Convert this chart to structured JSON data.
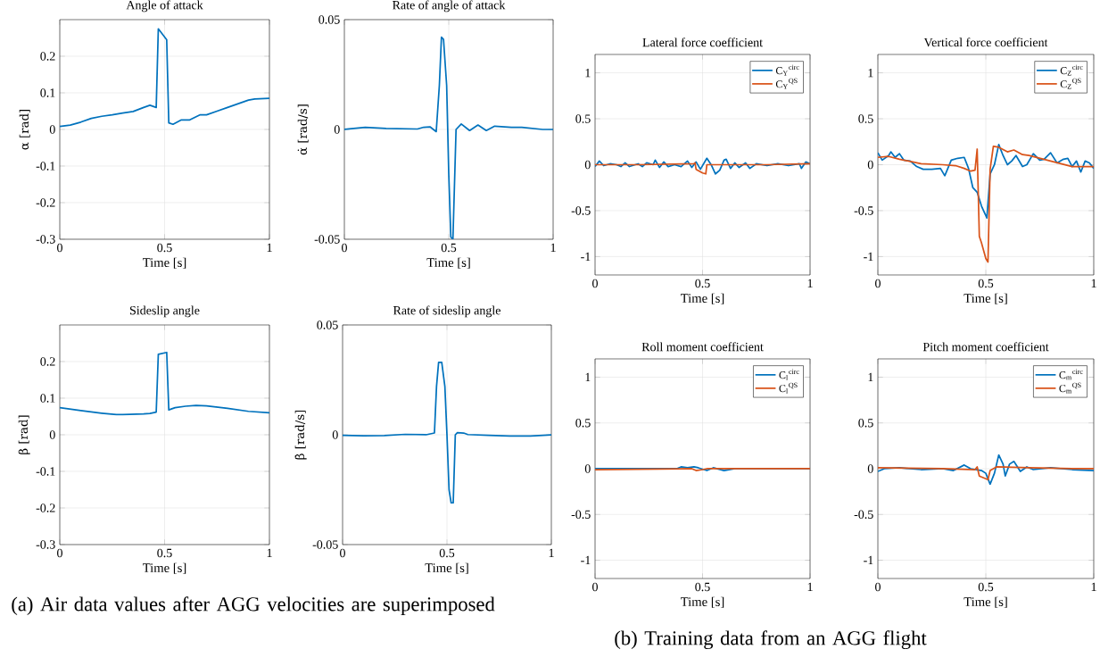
{
  "chart_data": [
    {
      "type": "line",
      "title": "Angle of attack",
      "xlabel": "Time [s]",
      "ylabel": "α [rad]",
      "xlim": [
        0,
        1
      ],
      "ylim": [
        -0.3,
        0.3
      ],
      "xticks": [
        0,
        0.5,
        1
      ],
      "yticks": [
        -0.3,
        -0.2,
        -0.1,
        0,
        0.1,
        0.2
      ],
      "grid": true,
      "series": [
        {
          "color": "#0072bd",
          "x": [
            0,
            0.05,
            0.1,
            0.15,
            0.2,
            0.25,
            0.3,
            0.35,
            0.4,
            0.43,
            0.46,
            0.47,
            0.51,
            0.52,
            0.54,
            0.58,
            0.62,
            0.67,
            0.7,
            0.75,
            0.8,
            0.85,
            0.9,
            0.93,
            1
          ],
          "values": [
            0.008,
            0.012,
            0.02,
            0.03,
            0.036,
            0.04,
            0.045,
            0.049,
            0.06,
            0.066,
            0.06,
            0.275,
            0.245,
            0.018,
            0.014,
            0.026,
            0.026,
            0.04,
            0.04,
            0.05,
            0.06,
            0.07,
            0.08,
            0.083,
            0.085
          ]
        }
      ]
    },
    {
      "type": "line",
      "title": "Rate of angle of attack",
      "xlabel": "Time [s]",
      "ylabel": "α̇ [rad/s]",
      "xlim": [
        0,
        1
      ],
      "ylim": [
        -0.05,
        0.05
      ],
      "xticks": [
        0,
        0.5,
        1
      ],
      "yticks": [
        -0.05,
        0,
        0.05
      ],
      "grid": true,
      "series": [
        {
          "color": "#0072bd",
          "x": [
            0,
            0.05,
            0.1,
            0.2,
            0.3,
            0.35,
            0.38,
            0.41,
            0.44,
            0.455,
            0.465,
            0.475,
            0.49,
            0.5,
            0.51,
            0.52,
            0.535,
            0.56,
            0.6,
            0.64,
            0.68,
            0.72,
            0.8,
            0.85,
            0.9,
            0.95,
            1
          ],
          "values": [
            0,
            0.0005,
            0.001,
            0.0005,
            0.0003,
            0.0002,
            0.001,
            0.0012,
            -0.001,
            0.02,
            0.042,
            0.041,
            0.02,
            -0.02,
            -0.049,
            -0.05,
            0,
            0.0025,
            -0.0005,
            0.002,
            -0.0005,
            0.0015,
            0.001,
            0.001,
            0.0005,
            0,
            0
          ]
        }
      ]
    },
    {
      "type": "line",
      "title": "Sideslip angle",
      "xlabel": "Time [s]",
      "ylabel": "β [rad]",
      "xlim": [
        0,
        1
      ],
      "ylim": [
        -0.3,
        0.3
      ],
      "xticks": [
        0,
        0.5,
        1
      ],
      "yticks": [
        -0.3,
        -0.2,
        -0.1,
        0,
        0.1,
        0.2
      ],
      "grid": true,
      "annotations": [
        "(a) Air data values after AGG velocities are superimposed"
      ],
      "series": [
        {
          "color": "#0072bd",
          "x": [
            0,
            0.1,
            0.2,
            0.27,
            0.3,
            0.4,
            0.43,
            0.46,
            0.47,
            0.51,
            0.52,
            0.55,
            0.6,
            0.65,
            0.7,
            0.8,
            0.9,
            1
          ],
          "values": [
            0.074,
            0.066,
            0.059,
            0.055,
            0.055,
            0.057,
            0.058,
            0.062,
            0.22,
            0.225,
            0.068,
            0.074,
            0.078,
            0.08,
            0.079,
            0.072,
            0.064,
            0.06
          ]
        }
      ]
    },
    {
      "type": "line",
      "title": "Rate of sideslip angle",
      "xlabel": "Time [s]",
      "ylabel": "β̇ [rad/s]",
      "xlim": [
        0,
        1
      ],
      "ylim": [
        -0.05,
        0.05
      ],
      "xticks": [
        0,
        0.5,
        1
      ],
      "yticks": [
        -0.05,
        0,
        0.05
      ],
      "grid": true,
      "series": [
        {
          "color": "#0072bd",
          "x": [
            0,
            0.1,
            0.2,
            0.3,
            0.4,
            0.44,
            0.45,
            0.46,
            0.475,
            0.49,
            0.5,
            0.51,
            0.52,
            0.53,
            0.54,
            0.55,
            0.58,
            0.6,
            0.7,
            0.8,
            0.9,
            1
          ],
          "values": [
            -0.0003,
            -0.0005,
            -0.0004,
            0.0002,
            0,
            0.0008,
            0.022,
            0.033,
            0.033,
            0.022,
            0,
            -0.025,
            -0.031,
            -0.031,
            0,
            0.001,
            0.0008,
            0.0001,
            -0.0003,
            -0.0006,
            -0.0006,
            -0.0001
          ]
        }
      ]
    },
    {
      "type": "line",
      "title": "Lateral force coefficient",
      "xlabel": "Time [s]",
      "xlim": [
        0,
        1
      ],
      "ylim": [
        -1.2,
        1.2
      ],
      "xticks": [
        0,
        0.5,
        1
      ],
      "yticks": [
        -1,
        -0.5,
        0,
        0.5,
        1
      ],
      "grid": true,
      "legend": "top right",
      "series": [
        {
          "name": "C$_{Y}$$^{circ}$",
          "color": "#0072bd",
          "x": [
            0,
            0.02,
            0.04,
            0.07,
            0.1,
            0.12,
            0.14,
            0.16,
            0.2,
            0.22,
            0.24,
            0.27,
            0.28,
            0.3,
            0.32,
            0.34,
            0.37,
            0.4,
            0.43,
            0.45,
            0.47,
            0.49,
            0.52,
            0.54,
            0.56,
            0.58,
            0.6,
            0.61,
            0.63,
            0.65,
            0.67,
            0.7,
            0.72,
            0.75,
            0.8,
            0.85,
            0.9,
            0.95,
            0.96,
            0.98,
            1
          ],
          "values": [
            -0.02,
            0.04,
            -0.01,
            0.01,
            0,
            -0.02,
            0.02,
            -0.02,
            0.01,
            -0.02,
            0.02,
            0,
            0.05,
            -0.03,
            0.03,
            -0.02,
            0,
            -0.02,
            0.04,
            -0.03,
            0.03,
            -0.05,
            0.07,
            0,
            -0.1,
            -0.06,
            0.05,
            0.06,
            -0.04,
            0.02,
            -0.03,
            0.02,
            -0.04,
            0.01,
            -0.01,
            0.01,
            -0.01,
            0.01,
            -0.04,
            0.03,
            0.01
          ]
        },
        {
          "name": "C$_{Y}$$^{QS}$",
          "color": "#d95319",
          "x": [
            0,
            0.2,
            0.46,
            0.465,
            0.47,
            0.5,
            0.515,
            0.52,
            0.6,
            0.8,
            1
          ],
          "values": [
            0,
            0,
            0.01,
            0.02,
            -0.05,
            -0.09,
            -0.1,
            0,
            0,
            0,
            0.01
          ]
        }
      ]
    },
    {
      "type": "line",
      "title": "Vertical force coefficient",
      "xlabel": "Time [s]",
      "xlim": [
        0,
        1
      ],
      "ylim": [
        -1.2,
        1.2
      ],
      "xticks": [
        0,
        0.5,
        1
      ],
      "yticks": [
        -1,
        -0.5,
        0,
        0.5,
        1
      ],
      "grid": true,
      "legend": "top right",
      "series": [
        {
          "name": "C$_{Z}$$^{circ}$",
          "color": "#0072bd",
          "x": [
            0,
            0.02,
            0.05,
            0.06,
            0.08,
            0.1,
            0.12,
            0.15,
            0.18,
            0.21,
            0.25,
            0.29,
            0.31,
            0.34,
            0.37,
            0.4,
            0.42,
            0.44,
            0.46,
            0.48,
            0.505,
            0.52,
            0.54,
            0.56,
            0.58,
            0.6,
            0.62,
            0.64,
            0.67,
            0.69,
            0.72,
            0.75,
            0.77,
            0.8,
            0.83,
            0.86,
            0.88,
            0.9,
            0.92,
            0.94,
            0.96,
            0.98,
            1
          ],
          "values": [
            0.13,
            0.05,
            0.1,
            0.14,
            0.08,
            0.12,
            0.05,
            0.04,
            -0.02,
            -0.05,
            -0.05,
            -0.04,
            -0.12,
            0.05,
            0.07,
            0.08,
            -0.04,
            -0.25,
            -0.3,
            -0.45,
            -0.58,
            -0.1,
            0,
            0.22,
            0.1,
            0,
            0.04,
            0.1,
            -0.02,
            0,
            0.12,
            0.05,
            0.06,
            0.13,
            0.02,
            0.06,
            0.07,
            -0.02,
            0.04,
            -0.08,
            0.04,
            0.02,
            -0.04
          ]
        },
        {
          "name": "C$_{Z}$$^{QS}$",
          "color": "#d95319",
          "x": [
            0,
            0.05,
            0.1,
            0.2,
            0.3,
            0.36,
            0.4,
            0.43,
            0.45,
            0.46,
            0.47,
            0.48,
            0.5,
            0.51,
            0.52,
            0.535,
            0.56,
            0.6,
            0.63,
            0.67,
            0.7,
            0.8,
            0.9,
            1
          ],
          "values": [
            0.08,
            0.09,
            0.06,
            0.01,
            0,
            -0.01,
            -0.04,
            -0.07,
            -0.06,
            0.17,
            -0.78,
            -0.85,
            -1.02,
            -1.06,
            -0.05,
            0.2,
            0.19,
            0.14,
            0.16,
            0.11,
            0.1,
            0.04,
            -0.02,
            -0.02
          ]
        }
      ]
    },
    {
      "type": "line",
      "title": "Roll moment coefficient",
      "xlabel": "Time [s]",
      "xlim": [
        0,
        1
      ],
      "ylim": [
        -1.2,
        1.2
      ],
      "xticks": [
        0,
        0.5,
        1
      ],
      "yticks": [
        -1,
        -0.5,
        0,
        0.5,
        1
      ],
      "grid": true,
      "legend": "top right",
      "annotations": [
        "(b) Training data from an AGG flight"
      ],
      "series": [
        {
          "name": "C$_{l}$$^{circ}$",
          "color": "#0072bd",
          "x": [
            0,
            0.3,
            0.38,
            0.4,
            0.43,
            0.46,
            0.48,
            0.52,
            0.55,
            0.6,
            0.65,
            0.7,
            1
          ],
          "values": [
            0,
            0,
            0,
            0.02,
            0.01,
            0.02,
            0.01,
            -0.02,
            0.01,
            -0.02,
            0,
            0,
            0
          ]
        },
        {
          "name": "C$_{l}$$^{QS}$",
          "color": "#d95319",
          "x": [
            0,
            0.45,
            0.47,
            0.5,
            0.52,
            1
          ],
          "values": [
            -0.01,
            0,
            -0.02,
            -0.01,
            0,
            0
          ]
        }
      ]
    },
    {
      "type": "line",
      "title": "Pitch moment coefficient",
      "xlabel": "Time [s]",
      "xlim": [
        0,
        1
      ],
      "ylim": [
        -1.2,
        1.2
      ],
      "xticks": [
        0,
        0.5,
        1
      ],
      "yticks": [
        -1,
        -0.5,
        0,
        0.5,
        1
      ],
      "grid": true,
      "legend": "top right",
      "series": [
        {
          "name": "C$_{m}$$^{circ}$",
          "color": "#0072bd",
          "x": [
            0,
            0.03,
            0.1,
            0.2,
            0.3,
            0.35,
            0.4,
            0.43,
            0.48,
            0.5,
            0.52,
            0.54,
            0.56,
            0.58,
            0.59,
            0.61,
            0.63,
            0.66,
            0.69,
            0.72,
            0.8,
            0.9,
            1
          ],
          "values": [
            -0.03,
            0,
            0.01,
            -0.01,
            0,
            -0.02,
            0.04,
            0,
            -0.02,
            -0.05,
            -0.17,
            -0.05,
            0.15,
            0.05,
            -0.08,
            0.05,
            0.08,
            -0.03,
            0.02,
            -0.01,
            0.01,
            -0.01,
            -0.02
          ]
        },
        {
          "name": "C$_{m}$$^{QS}$",
          "color": "#d95319",
          "x": [
            0,
            0.3,
            0.45,
            0.46,
            0.47,
            0.51,
            0.52,
            0.55,
            0.7,
            0.9,
            1
          ],
          "values": [
            0.01,
            0,
            -0.01,
            0.02,
            -0.08,
            -0.12,
            -0.02,
            0.02,
            0.01,
            0,
            0
          ]
        }
      ]
    }
  ]
}
